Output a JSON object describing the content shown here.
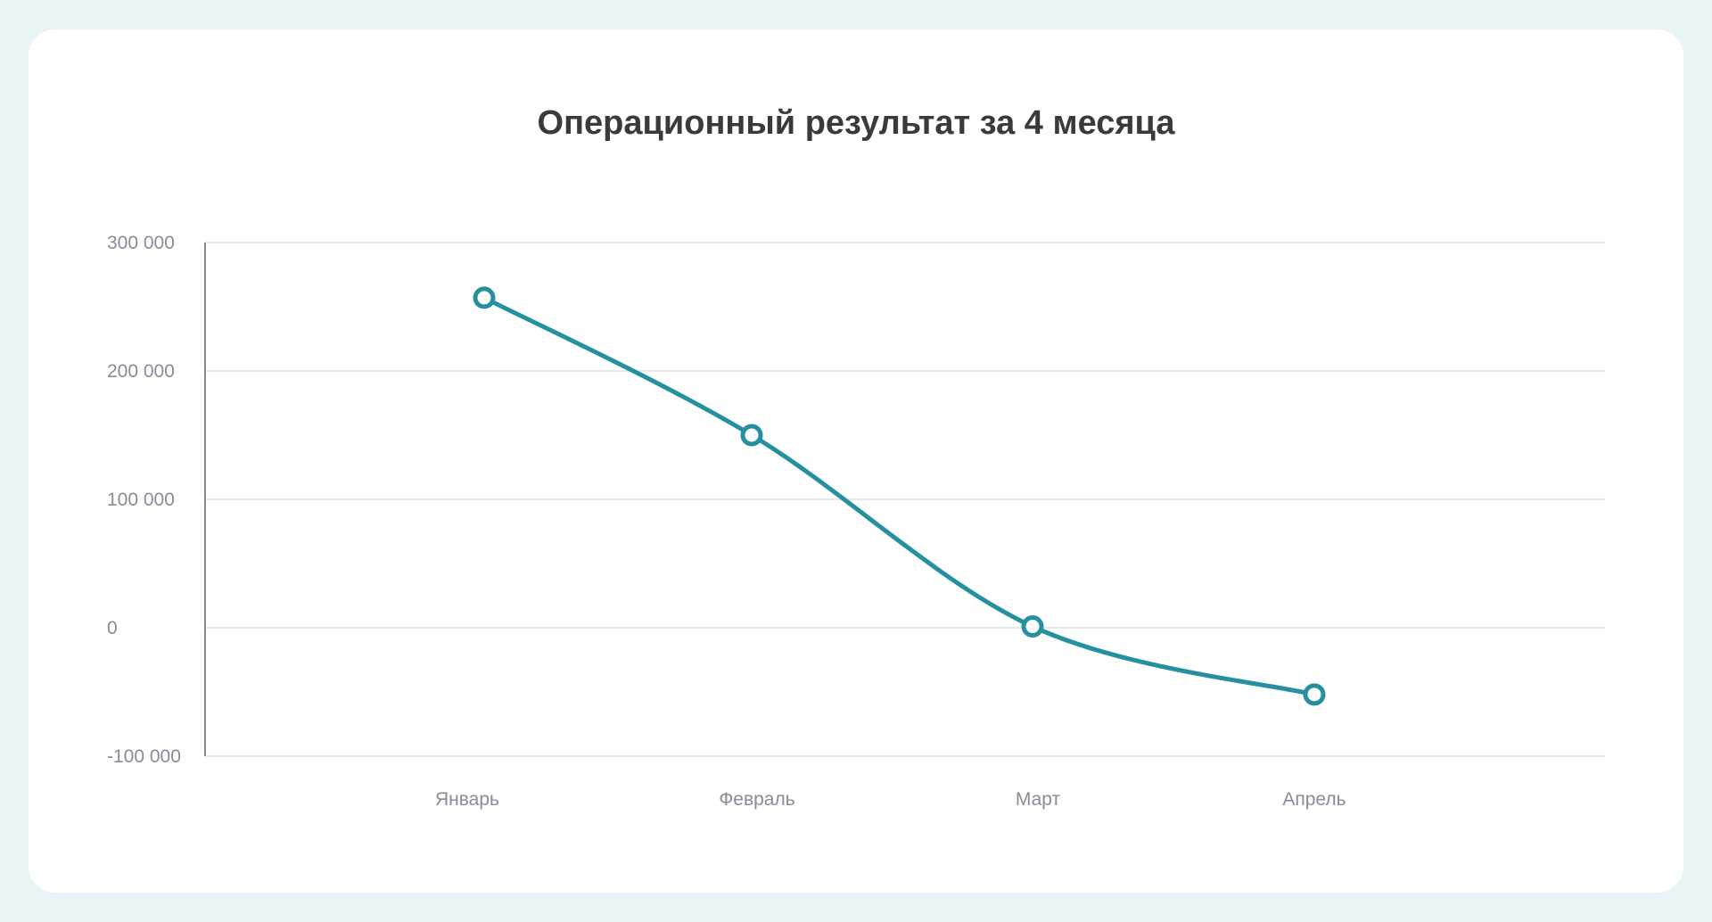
{
  "chart_data": {
    "type": "line",
    "title": "Операционный результат за 4 месяца",
    "categories": [
      "Январь",
      "Февраль",
      "Март",
      "Апрель"
    ],
    "series": [
      {
        "values": [
          257000,
          150000,
          1000,
          -52000
        ],
        "color": "#2590a0"
      }
    ],
    "yticks": [
      300000,
      200000,
      100000,
      0,
      -100000
    ],
    "ytick_labels": [
      "300 000",
      "200 000",
      "100 000",
      "0",
      "-100 000"
    ],
    "ylim": [
      -100000,
      300000
    ],
    "xlabel": "",
    "ylabel": "",
    "grid": true,
    "legend": "none",
    "colors": {
      "background": "#e8f4f5",
      "card": "#ffffff",
      "line": "#2590a0",
      "grid": "#e2e2e2",
      "axis": "#666666",
      "tick_text": "#8a8a99",
      "title_text": "#3a3a3a"
    }
  }
}
